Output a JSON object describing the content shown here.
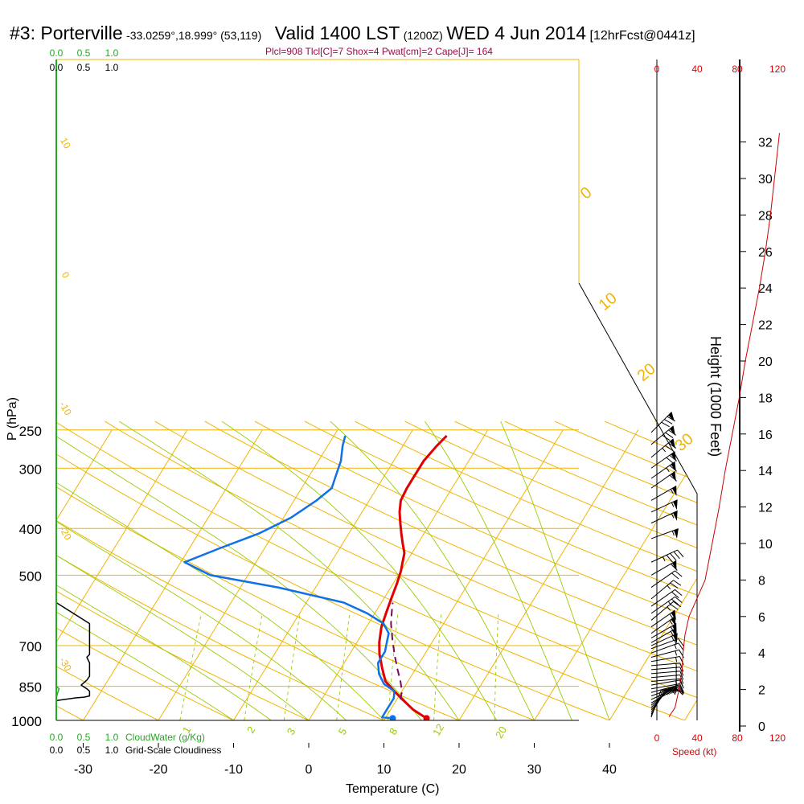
{
  "title": {
    "station": "#3: Porterville",
    "coords": "-33.0259°,18.999° (53,119)",
    "valid": "Valid 1400 LST",
    "zulu": "(1200Z)",
    "date": "WED 4 Jun 2014",
    "forecast": "[12hrFcst@0441z]"
  },
  "params_line": "Plcl=908 Tlcl[C]=7 Shox=4 Pwat[cm]=2 Cape[J]= 164",
  "colors": {
    "isotherm": "#f0b400",
    "dry_adiabat": "#f0b400",
    "moist_adiabat": "#99cc00",
    "mixing_ratio": "#99cc00",
    "temperature": "#e00000",
    "dewpoint": "#1070e8",
    "parcel": "#7a0a5a",
    "cloud_water": "#22aa22",
    "cloudiness": "#000000",
    "speed": "#cc0000"
  },
  "chart_data": {
    "type": "line",
    "xlabel": "Temperature (C)",
    "ylabel": "P (hPa)",
    "right_axis_label": "Height (1000 Feet)",
    "x_ticks": [
      "-30",
      "-20",
      "-10",
      "0",
      "10",
      "20",
      "30",
      "40"
    ],
    "pressure_ticks": [
      "250",
      "300",
      "400",
      "500",
      "700",
      "850",
      "1000"
    ],
    "height_ticks": [
      "0",
      "2",
      "4",
      "6",
      "8",
      "10",
      "12",
      "14",
      "16",
      "18",
      "20",
      "22",
      "24",
      "26",
      "28",
      "30",
      "32"
    ],
    "speed_ticks": [
      "0",
      "40",
      "80",
      "120"
    ],
    "speed_label": "Speed (kt)",
    "cloud_water_ticks": [
      "0.0",
      "0.5",
      "1.0"
    ],
    "cloud_water_label": "CloudWater (g/Kg)",
    "cloudiness_ticks": [
      "0.0",
      "0.5",
      "1.0"
    ],
    "cloudiness_label": "Grid-Scale Cloudiness",
    "dry_adiabat_labels": [
      "10",
      "0",
      "-10",
      "-20",
      "-30",
      "0",
      "10",
      "20",
      "30"
    ],
    "mixing_ratio_labels": [
      "1",
      "2",
      "3",
      "5",
      "8",
      "12",
      "20"
    ],
    "series": [
      {
        "name": "Temperature",
        "points": [
          [
            15.5,
            990
          ],
          [
            13,
            950
          ],
          [
            10.5,
            900
          ],
          [
            9,
            870
          ],
          [
            7,
            830
          ],
          [
            5.5,
            780
          ],
          [
            4,
            730
          ],
          [
            3,
            690
          ],
          [
            2,
            640
          ],
          [
            1.5,
            600
          ],
          [
            1,
            560
          ],
          [
            0.5,
            520
          ],
          [
            0,
            490
          ],
          [
            -0.5,
            470
          ],
          [
            -1,
            450
          ],
          [
            -2,
            430
          ],
          [
            -3,
            410
          ],
          [
            -4,
            390
          ],
          [
            -5,
            370
          ],
          [
            -5.8,
            350
          ],
          [
            -6,
            330
          ],
          [
            -6,
            310
          ],
          [
            -6,
            290
          ],
          [
            -5.5,
            270
          ],
          [
            -5,
            257
          ]
        ]
      },
      {
        "name": "Dew point",
        "points": [
          [
            11,
            990
          ],
          [
            9.5,
            985
          ],
          [
            9.5,
            960
          ],
          [
            9.5,
            900
          ],
          [
            9,
            870
          ],
          [
            7,
            840
          ],
          [
            5.5,
            800
          ],
          [
            4.5,
            760
          ],
          [
            4.5,
            720
          ],
          [
            4,
            690
          ],
          [
            3.5,
            660
          ],
          [
            2,
            630
          ],
          [
            -1,
            600
          ],
          [
            -5,
            570
          ],
          [
            -15,
            530
          ],
          [
            -25,
            500
          ],
          [
            -29.5,
            470
          ],
          [
            -26,
            440
          ],
          [
            -22,
            410
          ],
          [
            -19,
            380
          ],
          [
            -17,
            350
          ],
          [
            -16,
            330
          ],
          [
            -16.5,
            310
          ],
          [
            -17,
            290
          ],
          [
            -18,
            270
          ],
          [
            -18.5,
            257
          ]
        ]
      },
      {
        "name": "Parcel",
        "points": [
          [
            10.5,
            905
          ],
          [
            10,
            870
          ],
          [
            9,
            830
          ],
          [
            7.5,
            780
          ],
          [
            6,
            730
          ],
          [
            4.5,
            680
          ],
          [
            3,
            630
          ],
          [
            2,
            590
          ],
          [
            1.5,
            570
          ]
        ]
      },
      {
        "name": "Cloudiness",
        "points": [
          [
            0.0,
            570
          ],
          [
            0.6,
            630
          ],
          [
            0.6,
            730
          ],
          [
            0.55,
            740
          ],
          [
            0.6,
            760
          ],
          [
            0.6,
            810
          ],
          [
            0.55,
            825
          ],
          [
            0.45,
            845
          ],
          [
            0.55,
            860
          ],
          [
            0.6,
            870
          ],
          [
            0.6,
            890
          ],
          [
            0.5,
            895
          ],
          [
            0.35,
            898
          ],
          [
            0.0,
            910
          ]
        ]
      },
      {
        "name": "CloudWater",
        "points": [
          [
            0.0,
            850
          ],
          [
            0.05,
            860
          ],
          [
            0.02,
            880
          ],
          [
            0.0,
            900
          ]
        ]
      },
      {
        "name": "Speed",
        "points": [
          [
            12,
            0.5
          ],
          [
            18,
            1.0
          ],
          [
            22,
            2.0
          ],
          [
            25,
            3.0
          ],
          [
            26,
            4.0
          ],
          [
            28,
            5.0
          ],
          [
            32,
            6.0
          ],
          [
            40,
            7.0
          ],
          [
            48,
            8.0
          ],
          [
            55,
            10.0
          ],
          [
            62,
            12.0
          ],
          [
            68,
            14.0
          ],
          [
            75,
            16.0
          ],
          [
            82,
            18.0
          ],
          [
            88,
            20.0
          ],
          [
            95,
            22.0
          ],
          [
            102,
            24.0
          ],
          [
            108,
            26.0
          ],
          [
            113,
            28.0
          ],
          [
            117,
            30.0
          ],
          [
            120,
            31.5
          ],
          [
            122,
            32.5
          ]
        ]
      }
    ],
    "wind_barbs": [
      {
        "p": 985,
        "dir": 20,
        "spd": 10
      },
      {
        "p": 978,
        "dir": 25,
        "spd": 10
      },
      {
        "p": 970,
        "dir": 30,
        "spd": 15
      },
      {
        "p": 960,
        "dir": 35,
        "spd": 15
      },
      {
        "p": 950,
        "dir": 40,
        "spd": 15
      },
      {
        "p": 940,
        "dir": 45,
        "spd": 15
      },
      {
        "p": 930,
        "dir": 50,
        "spd": 15
      },
      {
        "p": 920,
        "dir": 60,
        "spd": 15
      },
      {
        "p": 905,
        "dir": 65,
        "spd": 15
      },
      {
        "p": 890,
        "dir": 70,
        "spd": 15
      },
      {
        "p": 875,
        "dir": 75,
        "spd": 15
      },
      {
        "p": 860,
        "dir": 80,
        "spd": 15
      },
      {
        "p": 845,
        "dir": 80,
        "spd": 15
      },
      {
        "p": 830,
        "dir": 85,
        "spd": 15
      },
      {
        "p": 815,
        "dir": 85,
        "spd": 15
      },
      {
        "p": 800,
        "dir": 85,
        "spd": 15
      },
      {
        "p": 785,
        "dir": 85,
        "spd": 15
      },
      {
        "p": 770,
        "dir": 85,
        "spd": 15
      },
      {
        "p": 755,
        "dir": 80,
        "spd": 15
      },
      {
        "p": 740,
        "dir": 75,
        "spd": 15
      },
      {
        "p": 725,
        "dir": 70,
        "spd": 15
      },
      {
        "p": 710,
        "dir": 70,
        "spd": 15
      },
      {
        "p": 700,
        "dir": 65,
        "spd": 55
      },
      {
        "p": 690,
        "dir": 60,
        "spd": 55
      },
      {
        "p": 675,
        "dir": 60,
        "spd": 55
      },
      {
        "p": 660,
        "dir": 55,
        "spd": 55
      },
      {
        "p": 640,
        "dir": 55,
        "spd": 55
      },
      {
        "p": 620,
        "dir": 50,
        "spd": 25
      },
      {
        "p": 600,
        "dir": 55,
        "spd": 25
      },
      {
        "p": 580,
        "dir": 55,
        "spd": 20
      },
      {
        "p": 560,
        "dir": 50,
        "spd": 25
      },
      {
        "p": 530,
        "dir": 55,
        "spd": 20
      },
      {
        "p": 500,
        "dir": 60,
        "spd": 60
      },
      {
        "p": 470,
        "dir": 65,
        "spd": 45
      },
      {
        "p": 420,
        "dir": 70,
        "spd": 55
      },
      {
        "p": 390,
        "dir": 65,
        "spd": 55
      },
      {
        "p": 370,
        "dir": 65,
        "spd": 55
      },
      {
        "p": 350,
        "dir": 60,
        "spd": 55
      },
      {
        "p": 330,
        "dir": 55,
        "spd": 60
      },
      {
        "p": 315,
        "dir": 55,
        "spd": 65
      },
      {
        "p": 300,
        "dir": 55,
        "spd": 70
      },
      {
        "p": 285,
        "dir": 50,
        "spd": 75
      },
      {
        "p": 268,
        "dir": 50,
        "spd": 80
      },
      {
        "p": 253,
        "dir": 45,
        "spd": 80
      }
    ]
  }
}
